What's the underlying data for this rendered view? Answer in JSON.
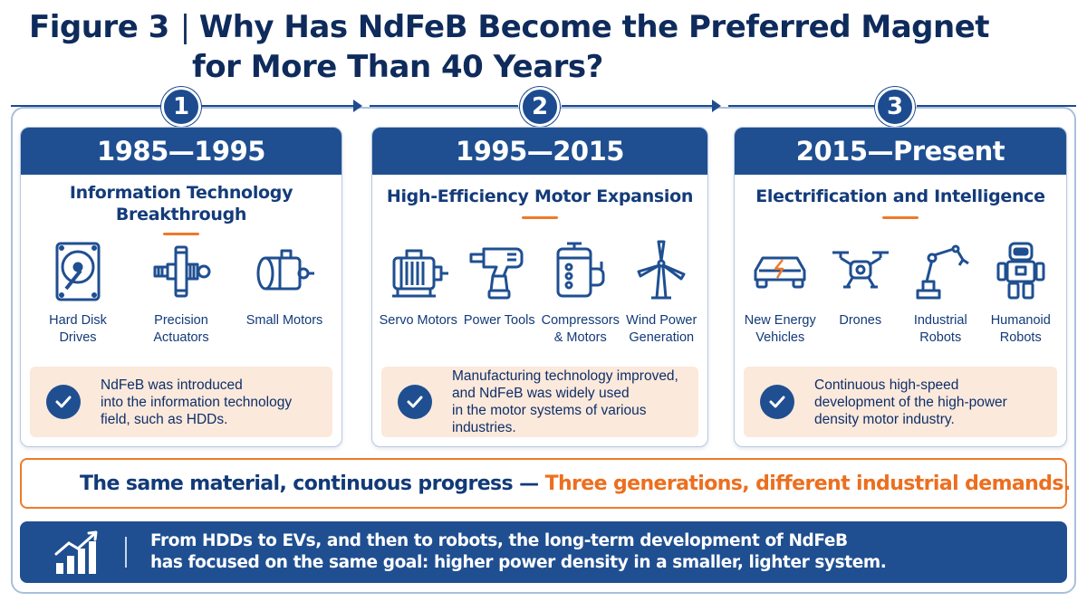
{
  "title": {
    "figure_label": "Figure 3",
    "separator": "|",
    "line1": "Why Has NdFeB Become the Preferred Magnet",
    "line2": "for More Than 40 Years?"
  },
  "steps": [
    "1",
    "2",
    "3"
  ],
  "panels": [
    {
      "period": "1985—1995",
      "theme": "Information Technology Breakthrough",
      "items": [
        {
          "icon": "hard-disk-icon",
          "label": "Hard Disk Drives"
        },
        {
          "icon": "actuator-icon",
          "label": "Precision Actuators"
        },
        {
          "icon": "small-motor-icon",
          "label": "Small Motors"
        }
      ],
      "note": "NdFeB was introduced\ninto the information technology\nfield, such as HDDs."
    },
    {
      "period": "1995—2015",
      "theme": "High-Efficiency Motor Expansion",
      "items": [
        {
          "icon": "servo-motor-icon",
          "label": "Servo Motors"
        },
        {
          "icon": "power-drill-icon",
          "label": "Power Tools"
        },
        {
          "icon": "compressor-icon",
          "label": "Compressors & Motors"
        },
        {
          "icon": "wind-turbine-icon",
          "label": "Wind Power Generation"
        }
      ],
      "note": "Manufacturing technology improved,\nand NdFeB was widely used\nin the motor systems of various\nindustries."
    },
    {
      "period": "2015—Present",
      "theme": "Electrification and Intelligence",
      "items": [
        {
          "icon": "electric-car-icon",
          "label": "New Energy Vehicles"
        },
        {
          "icon": "drone-icon",
          "label": "Drones"
        },
        {
          "icon": "robot-arm-icon",
          "label": "Industrial Robots"
        },
        {
          "icon": "humanoid-robot-icon",
          "label": "Humanoid Robots"
        }
      ],
      "note": "Continuous high-speed\ndevelopment of the high-power\ndensity motor industry."
    }
  ],
  "banner": {
    "blue_text": "The same material, continuous progress —",
    "orange_text": "Three generations, different industrial demands."
  },
  "footer": {
    "line1": "From HDDs to EVs, and then to robots, the long-term development of NdFeB",
    "line2": "has focused on the same goal: higher power density in a smaller, lighter system."
  },
  "colors": {
    "navy": "#1f4f91",
    "dark_navy": "#0e2b5c",
    "orange": "#ee7a2a",
    "note_bg": "#fbe9dc"
  }
}
